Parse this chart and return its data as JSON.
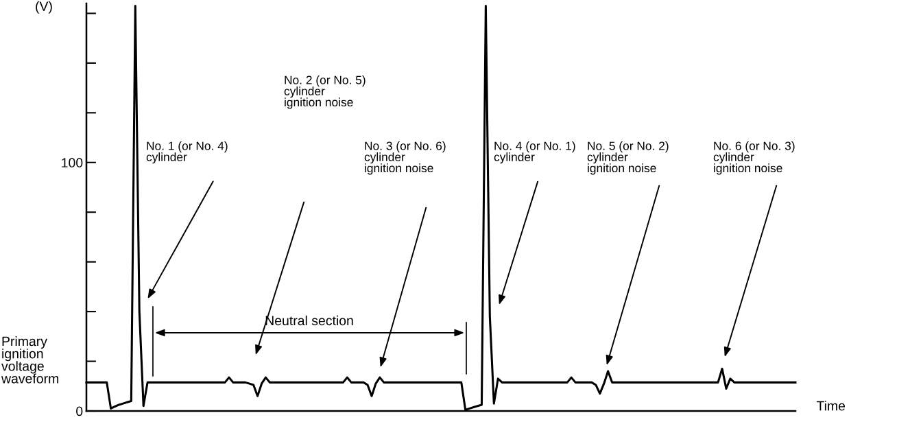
{
  "chart_data": {
    "type": "line",
    "xlabel": "Time",
    "ylabel": "(V)",
    "categories": [
      null,
      null,
      null,
      null,
      null,
      null,
      null,
      null,
      null,
      null,
      null,
      null,
      null,
      null,
      null,
      null,
      null,
      null,
      null,
      null,
      null,
      null,
      null,
      null,
      null,
      null,
      null,
      null,
      null,
      null,
      null,
      null,
      null,
      null,
      null,
      null,
      null,
      null,
      null,
      null,
      null,
      null,
      null,
      null,
      null,
      null,
      null,
      null,
      null,
      null,
      null,
      null,
      null,
      null,
      null,
      null,
      null,
      null,
      null,
      null,
      null,
      null,
      null,
      null,
      null,
      null,
      null,
      null,
      null,
      null,
      null,
      null,
      null,
      null,
      null,
      null,
      null,
      null,
      null,
      null,
      null,
      null,
      null,
      null,
      null,
      null,
      null,
      null,
      null,
      null,
      null,
      null,
      null,
      null,
      null,
      null,
      null,
      null,
      null,
      null,
      null,
      null,
      null,
      null,
      null,
      null,
      null,
      null,
      null,
      null,
      null,
      null,
      null,
      null,
      null,
      null,
      null,
      null,
      null,
      null,
      null,
      null,
      null,
      null,
      null,
      null,
      null,
      null,
      null,
      null,
      null,
      null,
      null,
      null,
      null,
      null,
      null,
      null,
      null,
      null,
      null,
      null,
      null,
      null,
      null,
      null,
      null,
      null,
      null,
      null,
      null,
      null,
      null,
      null,
      null,
      null,
      null,
      null,
      null,
      null,
      null,
      null,
      null,
      null,
      null,
      null,
      null,
      null,
      null,
      null,
      null,
      null,
      null,
      null,
      null
    ],
    "series": [
      {
        "name": "Primary\nignition\nvoltage\nwaveform",
        "color": "#000000",
        "values": [
          11.5,
          11.5,
          11.5,
          11.5,
          11.5,
          11.5,
          1,
          1.8,
          2.5,
          3,
          3.5,
          4,
          163,
          40,
          2,
          11.5,
          11.5,
          11.5,
          11.5,
          11.5,
          11.5,
          11.5,
          11.5,
          11.5,
          11.5,
          11.5,
          11.5,
          11.5,
          11.5,
          11.5,
          11.5,
          11.5,
          11.5,
          11.5,
          11.5,
          13.5,
          11.5,
          11.5,
          11.5,
          11.5,
          11,
          10.5,
          6,
          11,
          13.5,
          11.5,
          11.5,
          11.5,
          11.5,
          11.5,
          11.5,
          11.5,
          11.5,
          11.5,
          11.5,
          11.5,
          11.5,
          11.5,
          11.5,
          11.5,
          11.5,
          11.5,
          11.5,
          11.5,
          13.5,
          11.5,
          11.5,
          11.5,
          11.5,
          10.5,
          6,
          11,
          13.5,
          11.5,
          11.5,
          11.5,
          11.5,
          11.5,
          11.5,
          11.5,
          11.5,
          11.5,
          11.5,
          11.5,
          11.5,
          11.5,
          11.5,
          11.5,
          11.5,
          11.5,
          11.5,
          11.5,
          11.5,
          0.5,
          1,
          1.5,
          2,
          2.5,
          163,
          38,
          3,
          13,
          11.5,
          11.5,
          11.5,
          11.5,
          11.5,
          11.5,
          11.5,
          11.5,
          11.5,
          11.5,
          11.5,
          11.5,
          11.5,
          11.5,
          11.5,
          11.5,
          11.5,
          13.5,
          11.5,
          11.5,
          11.5,
          11.5,
          11.5,
          10.5,
          7,
          11,
          16,
          11.5,
          11.5,
          11.5,
          11.5,
          11.5,
          11.5,
          11.5,
          11.5,
          11.5,
          11.5,
          11.5,
          11.5,
          11.5,
          11.5,
          11.5,
          11.5,
          11.5,
          11.5,
          11.5,
          11.5,
          11.5,
          11.5,
          11.5,
          11.5,
          11.5,
          11.5,
          11.5,
          17,
          9,
          13,
          11.5,
          11.5,
          11.5,
          11.5,
          11.5,
          11.5,
          11.5,
          11.5,
          11.5,
          11.5,
          11.5,
          11.5,
          11.5,
          11.5,
          11.5,
          11.5
        ]
      }
    ],
    "ylim": [
      0,
      164
    ],
    "yticks": [
      0,
      {
        "value": 20,
        "label": null
      },
      {
        "value": 40,
        "label": null
      },
      {
        "value": 60,
        "label": null
      },
      {
        "value": 80,
        "label": null
      },
      100,
      {
        "value": 120,
        "label": null
      },
      {
        "value": 140,
        "label": null
      },
      {
        "value": 160,
        "label": null
      }
    ],
    "tick_labels": "y",
    "grid": false,
    "legend": false,
    "marker": "none",
    "line_style": "solid",
    "annotations": [
      "No. 1 (or No. 4)\ncylinder",
      "No. 2 (or No. 5)\ncylinder\nignition noise",
      "No. 3 (or No. 6)\ncylinder\nignition noise",
      "No. 4 (or No. 1)\ncylinder",
      "No. 5 (or No. 2)\ncylinder\nignition noise",
      "No. 6 (or No. 3)\ncylinder\nignition noise",
      "Neutral section"
    ]
  }
}
